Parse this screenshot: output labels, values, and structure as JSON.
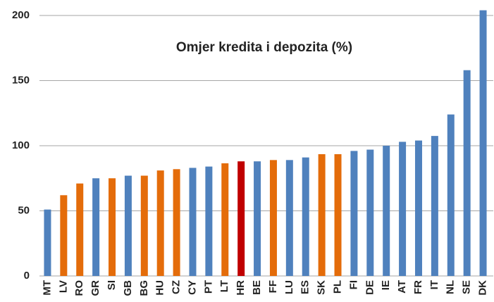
{
  "chart_data": {
    "type": "bar",
    "title": "Omjer kredita i depozita (%)",
    "categories": [
      "MT",
      "LV",
      "RO",
      "GR",
      "SI",
      "GB",
      "BG",
      "HU",
      "CZ",
      "CY",
      "PT",
      "LT",
      "HR",
      "BE",
      "FF",
      "LU",
      "ES",
      "SK",
      "PL",
      "FI",
      "DE",
      "IE",
      "AT",
      "FR",
      "IT",
      "NL",
      "SE",
      "DK"
    ],
    "values": [
      51,
      62,
      71,
      75,
      75,
      77,
      77,
      81,
      82,
      83,
      84,
      86.5,
      88,
      88,
      89,
      89,
      91,
      93.5,
      93.5,
      96,
      97,
      100,
      103,
      104,
      107.5,
      124,
      158,
      204
    ],
    "colors": [
      "#4f81bd",
      "#e46c0a",
      "#e46c0a",
      "#4f81bd",
      "#e46c0a",
      "#4f81bd",
      "#e46c0a",
      "#e46c0a",
      "#e46c0a",
      "#4f81bd",
      "#4f81bd",
      "#e46c0a",
      "#c00000",
      "#4f81bd",
      "#e46c0a",
      "#4f81bd",
      "#4f81bd",
      "#e46c0a",
      "#e46c0a",
      "#4f81bd",
      "#4f81bd",
      "#4f81bd",
      "#4f81bd",
      "#4f81bd",
      "#4f81bd",
      "#4f81bd",
      "#4f81bd",
      "#4f81bd"
    ],
    "ylim": [
      0,
      200
    ],
    "yticks": [
      0,
      50,
      100,
      150,
      200
    ],
    "grid": true
  }
}
